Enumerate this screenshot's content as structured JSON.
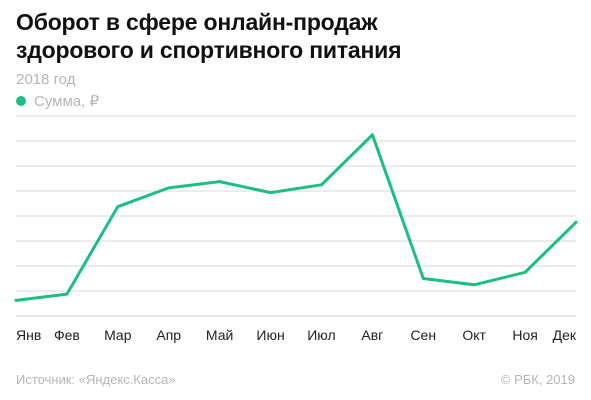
{
  "title_line1": "Оборот в сфере онлайн-продаж",
  "title_line2": "здорового и спортивного питания",
  "subtitle": "2018 год",
  "legend_label": "Сумма, ₽",
  "source": "Источник: «Яндекс.Касса»",
  "copyright": "© РБК, 2019",
  "colors": {
    "line": "#1bbf80",
    "grid": "#d9d9d9",
    "tick_text": "#222222"
  },
  "chart_data": {
    "type": "line",
    "categories": [
      "Янв",
      "Фев",
      "Мар",
      "Апр",
      "Май",
      "Июн",
      "Июл",
      "Авг",
      "Сен",
      "Окт",
      "Ноя",
      "Дек"
    ],
    "series": [
      {
        "name": "Сумма, ₽",
        "values": [
          0.5,
          0.7,
          3.5,
          4.1,
          4.3,
          3.95,
          4.2,
          5.8,
          1.2,
          1.0,
          1.4,
          3.0
        ]
      }
    ],
    "ylim": [
      0,
      6.4
    ],
    "grid": true,
    "y_tick_labels_shown": false
  }
}
